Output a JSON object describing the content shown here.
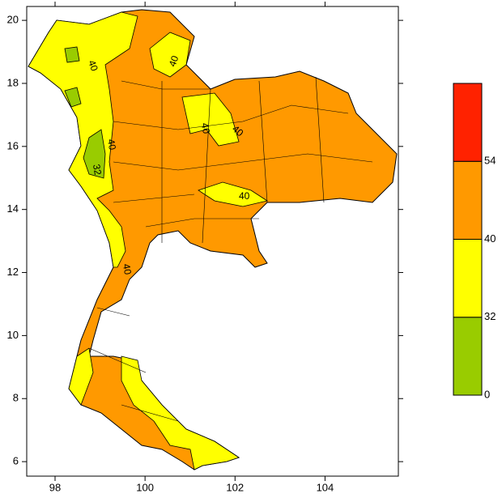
{
  "map": {
    "xlim": [
      97.37,
      105.63
    ],
    "ylim": [
      5.54,
      20.44
    ],
    "xticks": [
      98,
      100,
      102,
      104
    ],
    "yticks": [
      6,
      8,
      10,
      12,
      14,
      16,
      18,
      20
    ],
    "legend": {
      "levels": [
        0,
        32,
        40,
        54
      ],
      "colors": [
        "#99cc00",
        "#ffff00",
        "#ff9900",
        "#ff2200"
      ]
    },
    "contour_labels": [
      "40",
      "40",
      "40",
      "40",
      "32",
      "40",
      "40",
      "40"
    ]
  }
}
